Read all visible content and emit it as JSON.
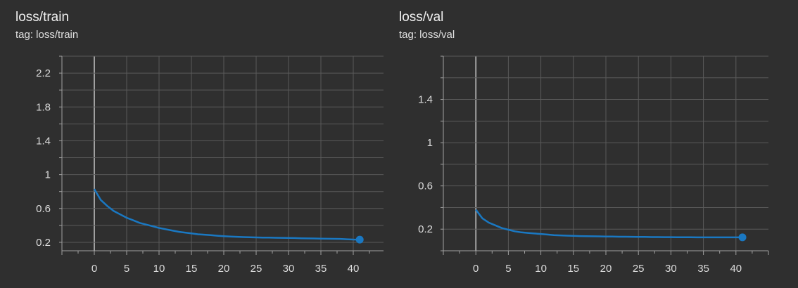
{
  "cards": [
    {
      "title": "loss/train",
      "tag": "tag: loss/train"
    },
    {
      "title": "loss/val",
      "tag": "tag: loss/val"
    }
  ],
  "colors": {
    "background": "#2f2f2f",
    "grid": "#5a5a5a",
    "axis": "#a0a0a0",
    "line": "#1a78c2",
    "line_raw": "#2d6fa8",
    "text": "#dcdcdc"
  },
  "chart_data": [
    {
      "type": "line",
      "title": "loss/train",
      "subtitle": "tag: loss/train",
      "xlabel": "",
      "ylabel": "",
      "xlim": [
        -5,
        45
      ],
      "ylim": [
        0.1,
        2.4
      ],
      "x_ticks": [
        0,
        5,
        10,
        15,
        20,
        25,
        30,
        35,
        40
      ],
      "y_ticks": [
        0.2,
        0.6,
        1,
        1.4,
        1.8,
        2.2
      ],
      "y_tick_labels": [
        "0.2",
        "0.6",
        "1",
        "1.4",
        "1.8",
        "2.2"
      ],
      "grid": true,
      "series": [
        {
          "x": [
            0,
            1,
            2,
            3,
            4,
            5,
            6,
            7,
            8,
            9,
            10,
            11,
            12,
            13,
            14,
            15,
            16,
            17,
            18,
            19,
            20,
            21,
            22,
            23,
            24,
            25,
            26,
            27,
            28,
            29,
            30,
            31,
            32,
            33,
            34,
            35,
            36,
            37,
            38,
            39,
            40,
            41
          ],
          "values": [
            0.83,
            0.7,
            0.63,
            0.57,
            0.53,
            0.49,
            0.46,
            0.43,
            0.41,
            0.39,
            0.37,
            0.355,
            0.34,
            0.325,
            0.315,
            0.305,
            0.295,
            0.29,
            0.285,
            0.278,
            0.272,
            0.268,
            0.265,
            0.262,
            0.26,
            0.258,
            0.256,
            0.255,
            0.254,
            0.253,
            0.252,
            0.25,
            0.248,
            0.246,
            0.245,
            0.243,
            0.242,
            0.241,
            0.24,
            0.236,
            0.233,
            0.232
          ]
        }
      ]
    },
    {
      "type": "line",
      "title": "loss/val",
      "subtitle": "tag: loss/val",
      "xlabel": "",
      "ylabel": "",
      "xlim": [
        -5,
        45
      ],
      "ylim": [
        0.0,
        1.8
      ],
      "x_ticks": [
        0,
        5,
        10,
        15,
        20,
        25,
        30,
        35,
        40
      ],
      "y_ticks": [
        0.2,
        0.6,
        1,
        1.4
      ],
      "y_tick_labels": [
        "0.2",
        "0.6",
        "1",
        "1.4"
      ],
      "grid": true,
      "series": [
        {
          "x": [
            0,
            1,
            2,
            3,
            4,
            5,
            6,
            7,
            8,
            9,
            10,
            11,
            12,
            13,
            14,
            15,
            16,
            17,
            18,
            19,
            20,
            21,
            22,
            23,
            24,
            25,
            26,
            27,
            28,
            29,
            30,
            31,
            32,
            33,
            34,
            35,
            36,
            37,
            38,
            39,
            40,
            41
          ],
          "values": [
            0.38,
            0.3,
            0.26,
            0.235,
            0.21,
            0.195,
            0.18,
            0.17,
            0.165,
            0.16,
            0.155,
            0.15,
            0.145,
            0.142,
            0.14,
            0.138,
            0.136,
            0.135,
            0.134,
            0.133,
            0.132,
            0.131,
            0.13,
            0.13,
            0.129,
            0.128,
            0.128,
            0.127,
            0.127,
            0.126,
            0.126,
            0.125,
            0.125,
            0.125,
            0.124,
            0.124,
            0.124,
            0.124,
            0.124,
            0.124,
            0.124,
            0.124
          ]
        }
      ]
    }
  ]
}
